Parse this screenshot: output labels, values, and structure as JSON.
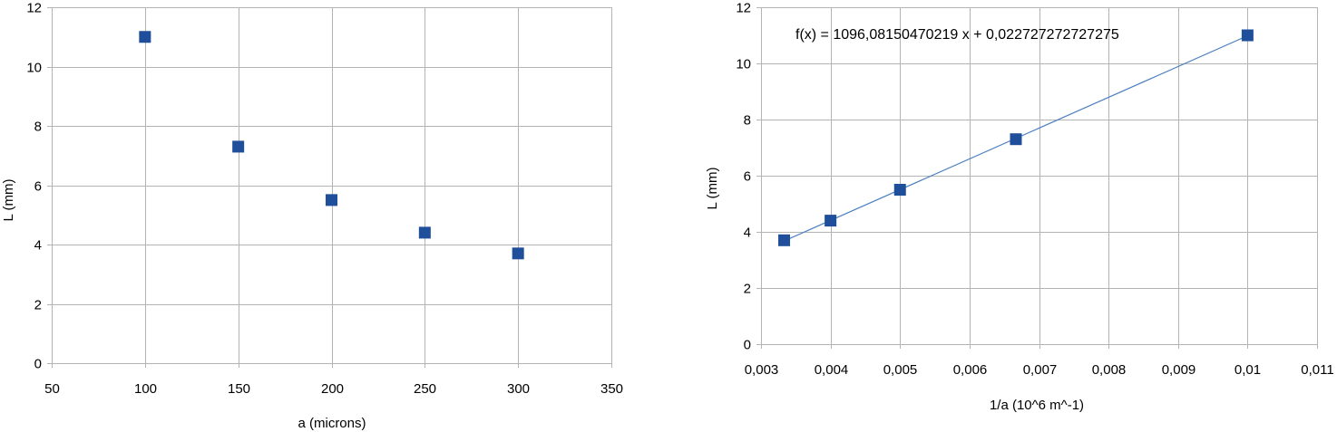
{
  "chart_data": [
    {
      "type": "scatter",
      "title": "",
      "xlabel": "a (microns)",
      "ylabel": "L (mm)",
      "xlim": [
        50,
        350
      ],
      "ylim": [
        0,
        12
      ],
      "xticks": [
        50,
        100,
        150,
        200,
        250,
        300,
        350
      ],
      "yticks": [
        0,
        2,
        4,
        6,
        8,
        10,
        12
      ],
      "xtick_labels": [
        "50",
        "100",
        "150",
        "200",
        "250",
        "300",
        "350"
      ],
      "ytick_labels": [
        "0",
        "2",
        "4",
        "6",
        "8",
        "10",
        "12"
      ],
      "grid": true,
      "legend": "none",
      "marker_color": "#1f4e9b",
      "series": [
        {
          "x": [
            100,
            150,
            200,
            250,
            300
          ],
          "y": [
            11,
            7.3,
            5.5,
            4.4,
            3.7
          ]
        }
      ]
    },
    {
      "type": "scatter",
      "title": "",
      "xlabel": "1/a (10^6 m^-1)",
      "ylabel": "L (mm)",
      "xlim": [
        0.003,
        0.011
      ],
      "ylim": [
        0,
        12
      ],
      "xticks": [
        0.003,
        0.004,
        0.005,
        0.006,
        0.007,
        0.008,
        0.009,
        0.01,
        0.011
      ],
      "yticks": [
        0,
        2,
        4,
        6,
        8,
        10,
        12
      ],
      "xtick_labels": [
        "0,003",
        "0,004",
        "0,005",
        "0,006",
        "0,007",
        "0,008",
        "0,009",
        "0,01",
        "0,011"
      ],
      "ytick_labels": [
        "0",
        "2",
        "4",
        "6",
        "8",
        "10",
        "12"
      ],
      "grid": true,
      "legend": "none",
      "marker_color": "#1f4e9b",
      "trendline_color": "#4a7fc1",
      "series": [
        {
          "x": [
            0.003333,
            0.004,
            0.005,
            0.006667,
            0.01
          ],
          "y": [
            3.7,
            4.4,
            5.5,
            7.3,
            11
          ]
        }
      ],
      "trendline": {
        "type": "linear",
        "slope": 1096.08150470219,
        "intercept": 0.022727272727275,
        "equation": "f(x) = 1096,08150470219 x + 0,022727272727275"
      }
    }
  ]
}
